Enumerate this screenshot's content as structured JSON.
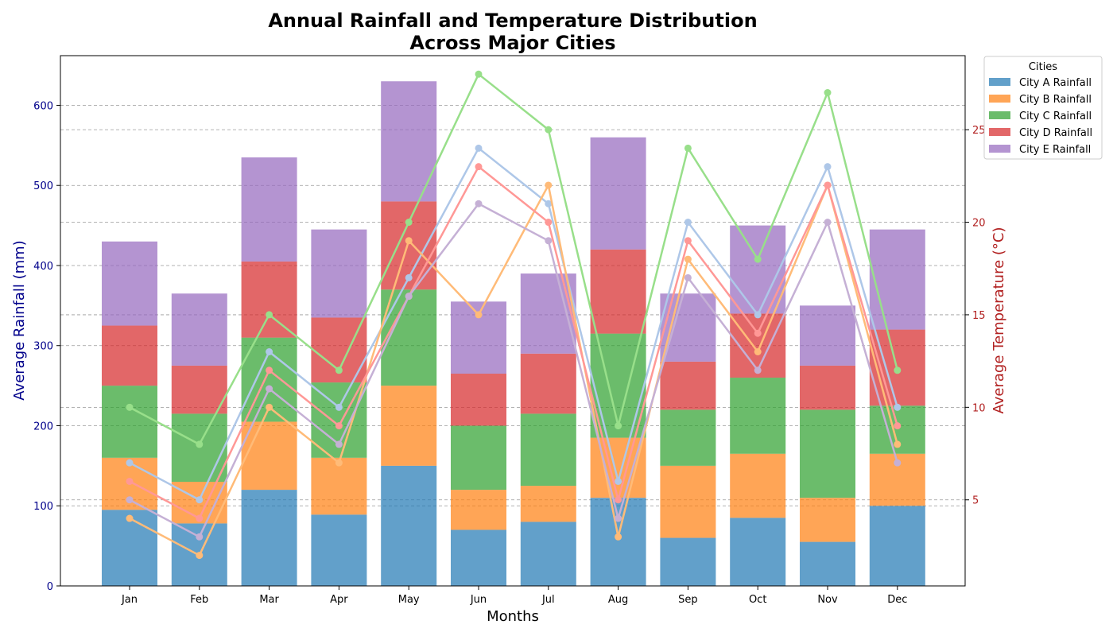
{
  "chart_data": {
    "type": "bar",
    "title": "Annual Rainfall and Temperature Distribution\nAcross Major Cities",
    "xlabel": "Months",
    "ylabel": "Average Rainfall (mm)",
    "y2label": "Average Temperature (°C)",
    "categories": [
      "Jan",
      "Feb",
      "Mar",
      "Apr",
      "May",
      "Jun",
      "Jul",
      "Aug",
      "Sep",
      "Oct",
      "Nov",
      "Dec"
    ],
    "ylim": [
      0,
      662
    ],
    "y2lim": [
      0.35,
      29
    ],
    "yticks": [
      0,
      100,
      200,
      300,
      400,
      500,
      600
    ],
    "y2ticks": [
      5,
      10,
      15,
      20,
      25
    ],
    "grid": true,
    "legend_title": "Cities",
    "legend_position": "outside top-right",
    "bar_series": [
      {
        "name": "City A Rainfall",
        "color": "#1f77b4",
        "values": [
          95,
          78,
          120,
          89,
          150,
          70,
          80,
          110,
          60,
          85,
          55,
          100
        ]
      },
      {
        "name": "City B Rainfall",
        "color": "#ff7f0e",
        "values": [
          65,
          52,
          85,
          71,
          100,
          50,
          45,
          75,
          90,
          80,
          55,
          65
        ]
      },
      {
        "name": "City C Rainfall",
        "color": "#2ca02c",
        "values": [
          90,
          85,
          105,
          94,
          120,
          80,
          90,
          130,
          70,
          95,
          110,
          60
        ]
      },
      {
        "name": "City D Rainfall",
        "color": "#d62728",
        "values": [
          75,
          60,
          95,
          81,
          110,
          65,
          75,
          105,
          60,
          80,
          55,
          95
        ]
      },
      {
        "name": "City E Rainfall",
        "color": "#9467bd",
        "values": [
          105,
          90,
          130,
          110,
          150,
          90,
          100,
          140,
          85,
          110,
          75,
          125
        ]
      }
    ],
    "line_series": [
      {
        "color": "#aec7e8",
        "values": [
          7,
          5,
          13,
          10,
          17,
          24,
          21,
          6,
          20,
          15,
          23,
          10
        ]
      },
      {
        "color": "#ffbb78",
        "values": [
          4,
          2,
          10,
          7,
          19,
          15,
          22,
          3,
          18,
          13,
          22,
          8
        ]
      },
      {
        "color": "#98df8a",
        "values": [
          10,
          8,
          15,
          12,
          20,
          28,
          25,
          9,
          24,
          18,
          27,
          12
        ]
      },
      {
        "color": "#ff9896",
        "values": [
          6,
          4,
          12,
          9,
          16,
          23,
          20,
          5,
          19,
          14,
          22,
          9
        ]
      },
      {
        "color": "#c5b0d5",
        "values": [
          5,
          3,
          11,
          8,
          16,
          21,
          19,
          4,
          17,
          12,
          20,
          7
        ]
      }
    ],
    "colors": {
      "left_axis": "#00008b",
      "right_axis": "#b22222",
      "grid": "#999999"
    }
  }
}
